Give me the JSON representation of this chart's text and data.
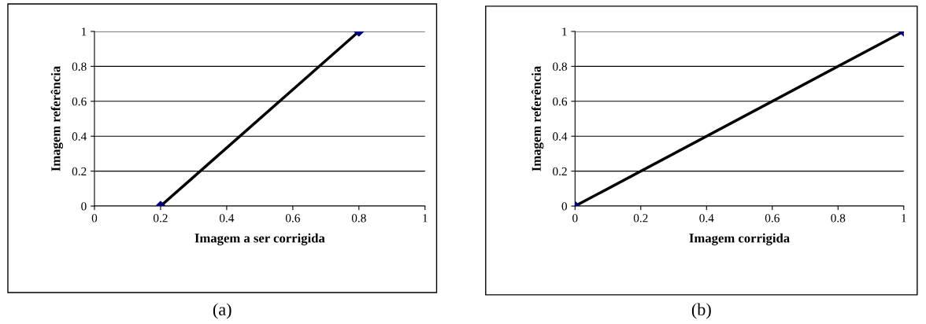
{
  "chart_data": [
    {
      "type": "line",
      "xlabel": "Imagem a ser corrigida",
      "ylabel": "Imagem referência",
      "annotations": [
        "(a)"
      ],
      "xlim": [
        0,
        1
      ],
      "ylim": [
        0,
        1
      ],
      "xticks": [
        0,
        0.2,
        0.4,
        0.6,
        0.8,
        1
      ],
      "yticks": [
        0,
        0.2,
        0.4,
        0.6,
        0.8,
        1
      ],
      "grid": "y",
      "marker": "diamond",
      "line_style": "solid",
      "legend": false,
      "series": [
        {
          "x": [
            0.2,
            0.8
          ],
          "values": [
            0,
            1
          ],
          "color": "#000000",
          "colors": [
            "#000080",
            "#000080"
          ]
        }
      ]
    },
    {
      "type": "line",
      "xlabel": "Imagem corrigida",
      "ylabel": "Imagem referência",
      "annotations": [
        "(b)"
      ],
      "xlim": [
        0,
        1
      ],
      "ylim": [
        0,
        1
      ],
      "xticks": [
        0,
        0.2,
        0.4,
        0.6,
        0.8,
        1
      ],
      "yticks": [
        0,
        0.2,
        0.4,
        0.6,
        0.8,
        1
      ],
      "grid": "y",
      "marker": "diamond",
      "line_style": "solid",
      "legend": false,
      "series": [
        {
          "x": [
            0,
            1
          ],
          "values": [
            0,
            1
          ],
          "color": "#000000",
          "colors": [
            "#000080",
            "#000080"
          ]
        }
      ]
    }
  ]
}
